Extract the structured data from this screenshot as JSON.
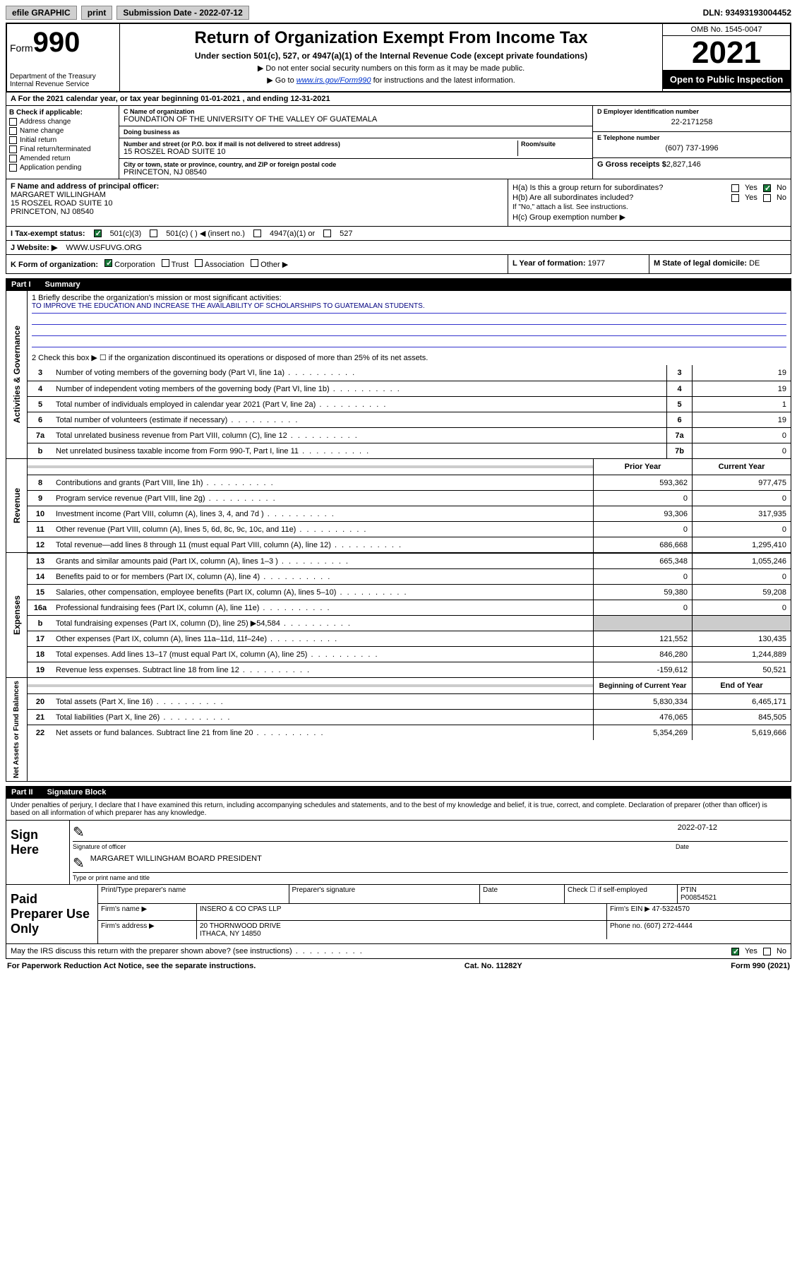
{
  "topbar": {
    "efile": "efile GRAPHIC",
    "print": "print",
    "submission_label": "Submission Date - 2022-07-12",
    "dln": "DLN: 93493193004452"
  },
  "header": {
    "form_prefix": "Form",
    "form_number": "990",
    "title": "Return of Organization Exempt From Income Tax",
    "subtitle": "Under section 501(c), 527, or 4947(a)(1) of the Internal Revenue Code (except private foundations)",
    "note1": "▶ Do not enter social security numbers on this form as it may be made public.",
    "note2_prefix": "▶ Go to ",
    "note2_link": "www.irs.gov/Form990",
    "note2_suffix": " for instructions and the latest information.",
    "dept": "Department of the Treasury Internal Revenue Service",
    "omb": "OMB No. 1545-0047",
    "year": "2021",
    "open_public": "Open to Public Inspection"
  },
  "row_a": "A For the 2021 calendar year, or tax year beginning 01-01-2021   , and ending 12-31-2021",
  "section_b": {
    "label": "B Check if applicable:",
    "items": [
      "Address change",
      "Name change",
      "Initial return",
      "Final return/terminated",
      "Amended return",
      "Application pending"
    ]
  },
  "section_c": {
    "name_label": "C Name of organization",
    "name": "FOUNDATION OF THE UNIVERSITY OF THE VALLEY OF GUATEMALA",
    "dba_label": "Doing business as",
    "street_label": "Number and street (or P.O. box if mail is not delivered to street address)",
    "room_label": "Room/suite",
    "street": "15 ROSZEL ROAD SUITE 10",
    "city_label": "City or town, state or province, country, and ZIP or foreign postal code",
    "city": "PRINCETON, NJ  08540"
  },
  "section_d": {
    "ein_label": "D Employer identification number",
    "ein": "22-2171258",
    "phone_label": "E Telephone number",
    "phone": "(607) 737-1996",
    "gross_label": "G Gross receipts $",
    "gross": "2,827,146"
  },
  "section_f": {
    "label": "F Name and address of principal officer:",
    "name": "MARGARET WILLINGHAM",
    "addr1": "15 ROSZEL ROAD SUITE 10",
    "addr2": "PRINCETON, NJ  08540"
  },
  "section_h": {
    "ha": "H(a)  Is this a group return for subordinates?",
    "hb": "H(b)  Are all subordinates included?",
    "hb_note": "If \"No,\" attach a list. See instructions.",
    "hc": "H(c)  Group exemption number ▶",
    "yes": "Yes",
    "no": "No"
  },
  "row_i": {
    "label": "I   Tax-exempt status:",
    "opt1": "501(c)(3)",
    "opt2": "501(c) (   ) ◀ (insert no.)",
    "opt3": "4947(a)(1) or",
    "opt4": "527"
  },
  "row_j": {
    "label": "J   Website: ▶",
    "value": "WWW.USFUVG.ORG"
  },
  "row_k": {
    "label": "K Form of organization:",
    "opts": [
      "Corporation",
      "Trust",
      "Association",
      "Other ▶"
    ]
  },
  "row_l": {
    "label": "L Year of formation:",
    "value": "1977"
  },
  "row_m": {
    "label": "M State of legal domicile:",
    "value": "DE"
  },
  "part1": {
    "num": "Part I",
    "title": "Summary"
  },
  "mission": {
    "q1": "1   Briefly describe the organization's mission or most significant activities:",
    "text": "TO IMPROVE THE EDUCATION AND INCREASE THE AVAILABILITY OF SCHOLARSHIPS TO GUATEMALAN STUDENTS.",
    "q2": "2   Check this box ▶ ☐  if the organization discontinued its operations or disposed of more than 25% of its net assets."
  },
  "governance_lines": [
    {
      "n": "3",
      "t": "Number of voting members of the governing body (Part VI, line 1a)",
      "box": "3",
      "v": "19"
    },
    {
      "n": "4",
      "t": "Number of independent voting members of the governing body (Part VI, line 1b)",
      "box": "4",
      "v": "19"
    },
    {
      "n": "5",
      "t": "Total number of individuals employed in calendar year 2021 (Part V, line 2a)",
      "box": "5",
      "v": "1"
    },
    {
      "n": "6",
      "t": "Total number of volunteers (estimate if necessary)",
      "box": "6",
      "v": "19"
    },
    {
      "n": "7a",
      "t": "Total unrelated business revenue from Part VIII, column (C), line 12",
      "box": "7a",
      "v": "0"
    },
    {
      "n": "b",
      "t": "Net unrelated business taxable income from Form 990-T, Part I, line 11",
      "box": "7b",
      "v": "0"
    }
  ],
  "col_headers": {
    "prior": "Prior Year",
    "current": "Current Year"
  },
  "revenue_lines": [
    {
      "n": "8",
      "t": "Contributions and grants (Part VIII, line 1h)",
      "p": "593,362",
      "c": "977,475"
    },
    {
      "n": "9",
      "t": "Program service revenue (Part VIII, line 2g)",
      "p": "0",
      "c": "0"
    },
    {
      "n": "10",
      "t": "Investment income (Part VIII, column (A), lines 3, 4, and 7d )",
      "p": "93,306",
      "c": "317,935"
    },
    {
      "n": "11",
      "t": "Other revenue (Part VIII, column (A), lines 5, 6d, 8c, 9c, 10c, and 11e)",
      "p": "0",
      "c": "0"
    },
    {
      "n": "12",
      "t": "Total revenue—add lines 8 through 11 (must equal Part VIII, column (A), line 12)",
      "p": "686,668",
      "c": "1,295,410"
    }
  ],
  "expense_lines": [
    {
      "n": "13",
      "t": "Grants and similar amounts paid (Part IX, column (A), lines 1–3 )",
      "p": "665,348",
      "c": "1,055,246"
    },
    {
      "n": "14",
      "t": "Benefits paid to or for members (Part IX, column (A), line 4)",
      "p": "0",
      "c": "0"
    },
    {
      "n": "15",
      "t": "Salaries, other compensation, employee benefits (Part IX, column (A), lines 5–10)",
      "p": "59,380",
      "c": "59,208"
    },
    {
      "n": "16a",
      "t": "Professional fundraising fees (Part IX, column (A), line 11e)",
      "p": "0",
      "c": "0"
    },
    {
      "n": "b",
      "t": "Total fundraising expenses (Part IX, column (D), line 25) ▶54,584",
      "p": "",
      "c": "",
      "shaded": true
    },
    {
      "n": "17",
      "t": "Other expenses (Part IX, column (A), lines 11a–11d, 11f–24e)",
      "p": "121,552",
      "c": "130,435"
    },
    {
      "n": "18",
      "t": "Total expenses. Add lines 13–17 (must equal Part IX, column (A), line 25)",
      "p": "846,280",
      "c": "1,244,889"
    },
    {
      "n": "19",
      "t": "Revenue less expenses. Subtract line 18 from line 12",
      "p": "-159,612",
      "c": "50,521"
    }
  ],
  "balance_headers": {
    "begin": "Beginning of Current Year",
    "end": "End of Year"
  },
  "balance_lines": [
    {
      "n": "20",
      "t": "Total assets (Part X, line 16)",
      "p": "5,830,334",
      "c": "6,465,171"
    },
    {
      "n": "21",
      "t": "Total liabilities (Part X, line 26)",
      "p": "476,065",
      "c": "845,505"
    },
    {
      "n": "22",
      "t": "Net assets or fund balances. Subtract line 21 from line 20",
      "p": "5,354,269",
      "c": "5,619,666"
    }
  ],
  "side_labels": {
    "gov": "Activities & Governance",
    "rev": "Revenue",
    "exp": "Expenses",
    "bal": "Net Assets or Fund Balances"
  },
  "part2": {
    "num": "Part II",
    "title": "Signature Block"
  },
  "part2_text": "Under penalties of perjury, I declare that I have examined this return, including accompanying schedules and statements, and to the best of my knowledge and belief, it is true, correct, and complete. Declaration of preparer (other than officer) is based on all information of which preparer has any knowledge.",
  "sign": {
    "label": "Sign Here",
    "date": "2022-07-12",
    "sig_label": "Signature of officer",
    "date_label": "Date",
    "name": "MARGARET WILLINGHAM  BOARD PRESIDENT",
    "name_label": "Type or print name and title"
  },
  "paid": {
    "label": "Paid Preparer Use Only",
    "h1": "Print/Type preparer's name",
    "h2": "Preparer's signature",
    "h3": "Date",
    "h4_check": "Check ☐ if self-employed",
    "h5_label": "PTIN",
    "h5": "P00854521",
    "firm_name_label": "Firm's name    ▶",
    "firm_name": "INSERO & CO CPAS LLP",
    "firm_ein_label": "Firm's EIN ▶",
    "firm_ein": "47-5324570",
    "firm_addr_label": "Firm's address ▶",
    "firm_addr1": "20 THORNWOOD DRIVE",
    "firm_addr2": "ITHACA, NY  14850",
    "phone_label": "Phone no.",
    "phone": "(607) 272-4444"
  },
  "footer": {
    "discuss": "May the IRS discuss this return with the preparer shown above? (see instructions)",
    "yes": "Yes",
    "no": "No",
    "paperwork": "For Paperwork Reduction Act Notice, see the separate instructions.",
    "cat": "Cat. No. 11282Y",
    "form": "Form 990 (2021)"
  }
}
